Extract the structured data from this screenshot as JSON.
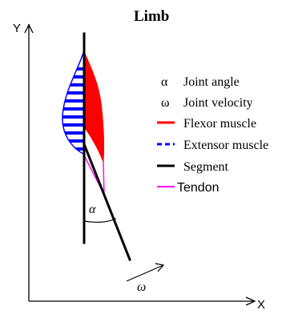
{
  "title": "Limb",
  "axes": {
    "y_label": "Y",
    "x_label": "X"
  },
  "legend": [
    {
      "symbol": "α",
      "label": "Joint angle"
    },
    {
      "symbol": "ω",
      "label": "Joint velocity"
    },
    {
      "label": "Flexor muscle",
      "color": "#ff0000",
      "style": "solid"
    },
    {
      "label": "Extensor muscle",
      "color": "#0000ff",
      "style": "dashed"
    },
    {
      "label": "Segment",
      "color": "#000000",
      "style": "solid"
    },
    {
      "label": "Tendon",
      "color": "#ff00ff",
      "style": "solid"
    }
  ],
  "annotations": {
    "angle_symbol": "α",
    "velocity_symbol": "ω"
  },
  "colors": {
    "flexor": "#ff0000",
    "extensor": "#0000ff",
    "segment": "#000000",
    "tendon": "#ff00ff",
    "axis": "#000000"
  }
}
